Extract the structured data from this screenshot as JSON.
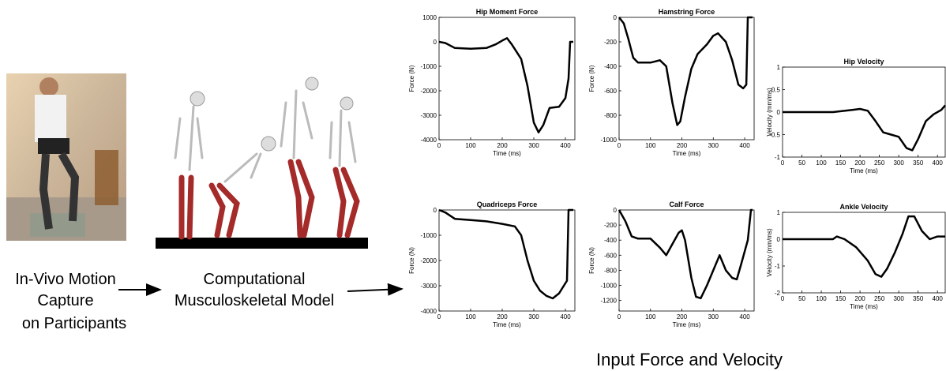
{
  "labels": {
    "capture": [
      "In-Vivo Motion",
      "Capture",
      "on Participants"
    ],
    "model": [
      "Computational",
      "Musculoskeletal Model"
    ],
    "inputs": "Input Force and Velocity"
  },
  "chart_data": [
    {
      "type": "line",
      "title": "Hip Moment Force",
      "xlabel": "Time (ms)",
      "ylabel": "Force (N)",
      "color": "#000000",
      "x": [
        0,
        20,
        50,
        100,
        150,
        180,
        200,
        215,
        230,
        260,
        280,
        300,
        315,
        330,
        350,
        380,
        400,
        410,
        415,
        425
      ],
      "values": [
        0,
        -50,
        -250,
        -280,
        -250,
        -100,
        50,
        150,
        -100,
        -700,
        -1800,
        -3300,
        -3700,
        -3400,
        -2700,
        -2650,
        -2300,
        -1500,
        0,
        0
      ],
      "xlim": [
        0,
        430
      ],
      "xticks": [
        0,
        100,
        200,
        300,
        400
      ],
      "ylim": [
        -4000,
        1000
      ],
      "yticks": [
        -4000,
        -3000,
        -2000,
        -1000,
        0,
        1000
      ]
    },
    {
      "type": "line",
      "title": "Hamstring Force",
      "xlabel": "Time (ms)",
      "ylabel": "Force (N)",
      "color": "#000000",
      "x": [
        0,
        15,
        30,
        45,
        60,
        100,
        130,
        150,
        170,
        185,
        195,
        210,
        230,
        250,
        280,
        300,
        315,
        340,
        360,
        380,
        395,
        405,
        410,
        425
      ],
      "values": [
        0,
        -50,
        -180,
        -330,
        -370,
        -370,
        -350,
        -400,
        -700,
        -880,
        -850,
        -650,
        -420,
        -300,
        -220,
        -150,
        -130,
        -200,
        -350,
        -550,
        -580,
        -550,
        0,
        0
      ],
      "xlim": [
        0,
        430
      ],
      "xticks": [
        0,
        100,
        200,
        300,
        400
      ],
      "ylim": [
        -1000,
        0
      ],
      "yticks": [
        -1000,
        -800,
        -600,
        -400,
        -200,
        0
      ]
    },
    {
      "type": "line",
      "title": "Hip Velocity",
      "xlabel": "Time (ms)",
      "ylabel": "Velocity (mm/ms)",
      "color": "#000000",
      "x": [
        0,
        130,
        180,
        200,
        220,
        240,
        260,
        280,
        300,
        320,
        335,
        350,
        370,
        390,
        410,
        420
      ],
      "values": [
        0,
        0,
        0.05,
        0.07,
        0.03,
        -0.2,
        -0.45,
        -0.5,
        -0.55,
        -0.8,
        -0.85,
        -0.6,
        -0.2,
        -0.05,
        0.05,
        0.15
      ],
      "xlim": [
        0,
        420
      ],
      "xticks": [
        0,
        50,
        100,
        150,
        200,
        250,
        300,
        350,
        400
      ],
      "ylim": [
        -1,
        1
      ],
      "yticks": [
        -1,
        -0.5,
        0,
        0.5,
        1
      ]
    },
    {
      "type": "line",
      "title": "Quadriceps Force",
      "xlabel": "Time (ms)",
      "ylabel": "Force (N)",
      "color": "#000000",
      "x": [
        0,
        20,
        50,
        100,
        150,
        200,
        240,
        260,
        280,
        300,
        320,
        340,
        360,
        380,
        395,
        405,
        410,
        425
      ],
      "values": [
        0,
        -100,
        -350,
        -400,
        -450,
        -550,
        -650,
        -1000,
        -2000,
        -2800,
        -3200,
        -3400,
        -3500,
        -3300,
        -3000,
        -2800,
        0,
        0
      ],
      "xlim": [
        0,
        430
      ],
      "xticks": [
        0,
        100,
        200,
        300,
        400
      ],
      "ylim": [
        -4000,
        0
      ],
      "yticks": [
        -4000,
        -3000,
        -2000,
        -1000,
        0
      ]
    },
    {
      "type": "line",
      "title": "Calf Force",
      "xlabel": "Time (ms)",
      "ylabel": "Force (N)",
      "color": "#000000",
      "x": [
        0,
        20,
        40,
        60,
        100,
        130,
        150,
        170,
        190,
        200,
        210,
        230,
        245,
        260,
        280,
        300,
        320,
        340,
        360,
        375,
        390,
        410,
        420,
        425
      ],
      "values": [
        0,
        -150,
        -350,
        -380,
        -380,
        -500,
        -600,
        -450,
        -300,
        -270,
        -400,
        -900,
        -1150,
        -1170,
        -1000,
        -800,
        -600,
        -800,
        -900,
        -920,
        -700,
        -400,
        0,
        0
      ],
      "xlim": [
        0,
        430
      ],
      "xticks": [
        0,
        100,
        200,
        300,
        400
      ],
      "ylim": [
        -1340,
        0
      ],
      "yticks": [
        -1200,
        -1000,
        -800,
        -600,
        -400,
        -200,
        0
      ]
    },
    {
      "type": "line",
      "title": "Ankle Velocity",
      "xlabel": "Time (ms)",
      "ylabel": "Velocity (mm/ms)",
      "color": "#000000",
      "x": [
        0,
        130,
        140,
        160,
        190,
        220,
        240,
        255,
        270,
        290,
        310,
        325,
        340,
        360,
        380,
        400,
        420
      ],
      "values": [
        0,
        0,
        0.1,
        0,
        -0.3,
        -0.8,
        -1.3,
        -1.4,
        -1.1,
        -0.5,
        0.2,
        0.85,
        0.85,
        0.3,
        0,
        0.1,
        0.1
      ],
      "xlim": [
        0,
        420
      ],
      "xticks": [
        0,
        50,
        100,
        150,
        200,
        250,
        300,
        350,
        400
      ],
      "ylim": [
        -2,
        1
      ],
      "yticks": [
        -2,
        -1,
        0,
        1
      ]
    }
  ]
}
